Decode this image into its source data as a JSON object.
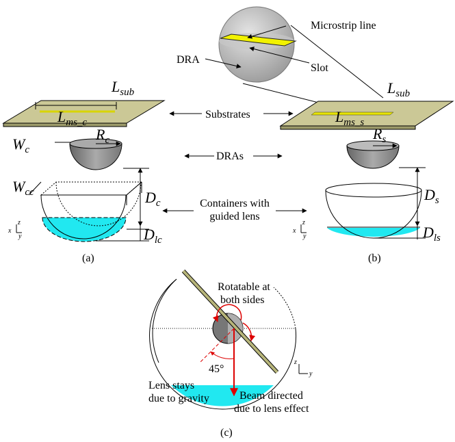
{
  "inset": {
    "microstrip": "Microstrip line",
    "slot": "Slot",
    "dra": "DRA"
  },
  "panel_a": {
    "caption": "(a)",
    "l_sub": {
      "base": "L",
      "sub": "sub"
    },
    "l_ms": {
      "base": "L",
      "sub": "ms_c"
    },
    "r": {
      "base": "R",
      "sub": "c"
    },
    "w": {
      "base": "W",
      "sub": "c"
    },
    "w_cc": {
      "base": "W",
      "sub": "cc"
    },
    "d": {
      "base": "D",
      "sub": "c"
    },
    "d_l": {
      "base": "D",
      "sub": "lc"
    },
    "axes": {
      "x": "x",
      "y": "y",
      "z": "z"
    }
  },
  "panel_b": {
    "caption": "(b)",
    "l_sub": {
      "base": "L",
      "sub": "sub"
    },
    "l_ms": {
      "base": "L",
      "sub": "ms_s"
    },
    "r": {
      "base": "R",
      "sub": "s"
    },
    "d": {
      "base": "D",
      "sub": "s"
    },
    "d_l": {
      "base": "D",
      "sub": "ls"
    },
    "axes": {
      "x": "x",
      "y": "y",
      "z": "z"
    }
  },
  "center": {
    "substrates": "Substrates",
    "dras": "DRAs",
    "containers": [
      "Containers with",
      "guided lens"
    ]
  },
  "panel_c": {
    "caption": "(c)",
    "rotatable": [
      "Rotatable at",
      "both sides"
    ],
    "angle": "45°",
    "lens": [
      "Lens stays",
      "due to gravity"
    ],
    "beam": [
      "Beam directed",
      "due to lens effect"
    ],
    "axes": {
      "y": "y",
      "z": "z"
    }
  }
}
